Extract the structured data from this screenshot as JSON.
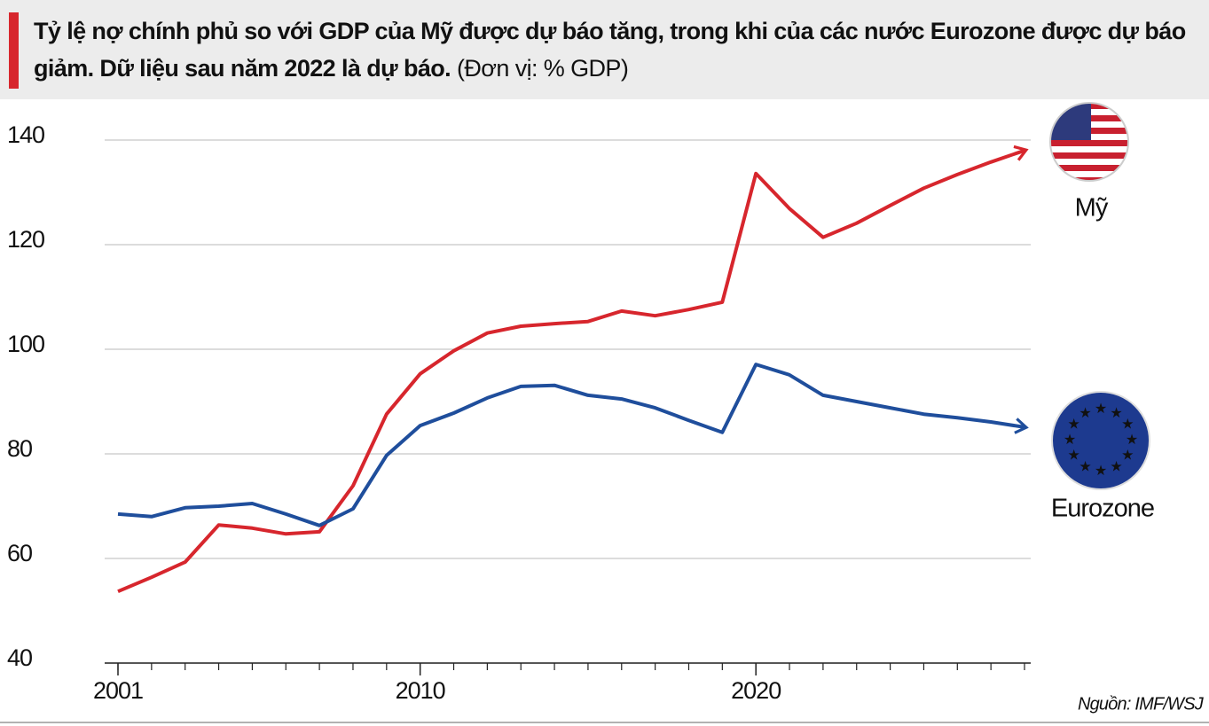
{
  "chart_data": {
    "type": "line",
    "title": "Tỷ lệ nợ chính phủ so với GDP của Mỹ được dự báo tăng, trong khi của các nước Eurozone được dự báo giảm. Dữ liệu sau năm 2022 là dự báo.",
    "unit": "(Đơn vị: % GDP)",
    "source": "Nguồn: IMF/WSJ",
    "x": [
      2001,
      2002,
      2003,
      2004,
      2005,
      2006,
      2007,
      2008,
      2009,
      2010,
      2011,
      2012,
      2013,
      2014,
      2015,
      2016,
      2017,
      2018,
      2019,
      2020,
      2021,
      2022,
      2023,
      2024,
      2025,
      2026,
      2027,
      2028
    ],
    "series": [
      {
        "name": "Mỹ",
        "color": "#d7262d",
        "values": [
          53.7,
          56.4,
          59.3,
          66.4,
          65.8,
          64.7,
          65.1,
          73.9,
          87.6,
          95.3,
          99.7,
          103.1,
          104.4,
          104.9,
          105.3,
          107.3,
          106.4,
          107.6,
          109.0,
          133.6,
          126.9,
          121.4,
          124.1,
          127.5,
          130.8,
          133.4,
          135.8,
          138.0
        ]
      },
      {
        "name": "Eurozone",
        "color": "#1f4e9c",
        "values": [
          68.5,
          68.0,
          69.7,
          70.0,
          70.5,
          68.5,
          66.3,
          69.5,
          79.7,
          85.4,
          87.8,
          90.7,
          92.9,
          93.1,
          91.2,
          90.5,
          88.8,
          86.4,
          84.1,
          97.1,
          95.1,
          91.2,
          90.0,
          88.8,
          87.6,
          86.9,
          86.1,
          85.1
        ]
      }
    ],
    "xlim": [
      2001,
      2028
    ],
    "xticks": [
      2001,
      2010,
      2020
    ],
    "x_minor_ticks": [
      2001,
      2002,
      2003,
      2004,
      2005,
      2006,
      2007,
      2008,
      2009,
      2010,
      2011,
      2012,
      2013,
      2014,
      2015,
      2016,
      2017,
      2018,
      2019,
      2020,
      2021,
      2022,
      2023,
      2024,
      2025,
      2026,
      2027,
      2028
    ],
    "ylim": [
      40,
      140
    ],
    "yticks": [
      40,
      60,
      80,
      100,
      120,
      140
    ],
    "grid": true
  }
}
